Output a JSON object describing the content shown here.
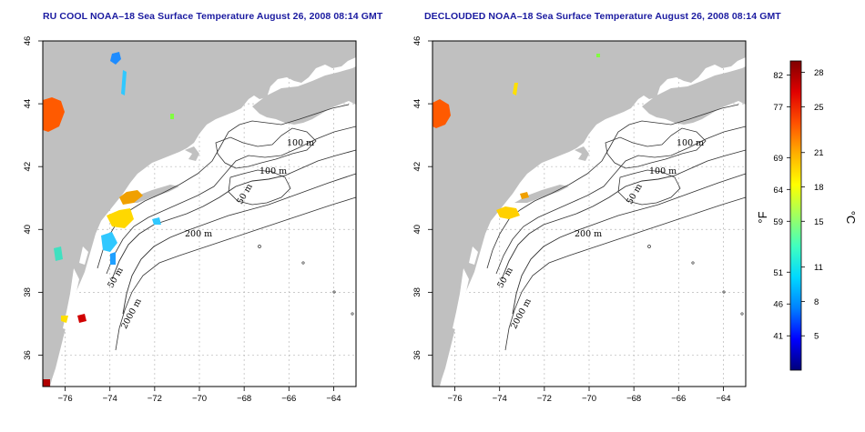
{
  "panels": [
    {
      "title": "RU COOL NOAA–18 Sea Surface Temperature August 26, 2008 08:14 GMT"
    },
    {
      "title": "DECLOUDED NOAA–18 Sea Surface Temperature August 26, 2008 08:14 GMT"
    }
  ],
  "map": {
    "lon_range": [
      -77,
      -63
    ],
    "lat_range": [
      35,
      46
    ],
    "lon_ticks": [
      "−76",
      "−74",
      "−72",
      "−70",
      "−68",
      "−66",
      "−64"
    ],
    "lon_values": [
      -76,
      -74,
      -72,
      -70,
      -68,
      -66,
      -64
    ],
    "lat_ticks": [
      "36",
      "38",
      "40",
      "42",
      "44",
      "46"
    ],
    "lat_values": [
      36,
      38,
      40,
      42,
      44,
      46
    ],
    "contour_labels": [
      "100 m",
      "100 m",
      "50 m",
      "200 m",
      "50 m",
      "2000 m"
    ],
    "land_color": "#c0c0c0",
    "water_color": "#ffffff"
  },
  "colorbar": {
    "fahrenheit_ticks": [
      "82",
      "77",
      "69",
      "64",
      "59",
      "51",
      "46",
      "41"
    ],
    "fahrenheit_values": [
      82,
      77,
      69,
      64,
      59,
      51,
      46,
      41
    ],
    "celsius_ticks": [
      "28",
      "25",
      "21",
      "18",
      "15",
      "11",
      "8",
      "5"
    ],
    "celsius_values": [
      28,
      25,
      21,
      18,
      15,
      11,
      8,
      5
    ],
    "celsius_range": [
      2,
      29
    ],
    "unit_f": "°F",
    "unit_c": "°C",
    "colors": [
      "#00007a",
      "#0000ff",
      "#0080ff",
      "#00d8ff",
      "#40ffc0",
      "#a0ff60",
      "#ffff00",
      "#ffb000",
      "#ff5000",
      "#e00000",
      "#800000"
    ]
  }
}
